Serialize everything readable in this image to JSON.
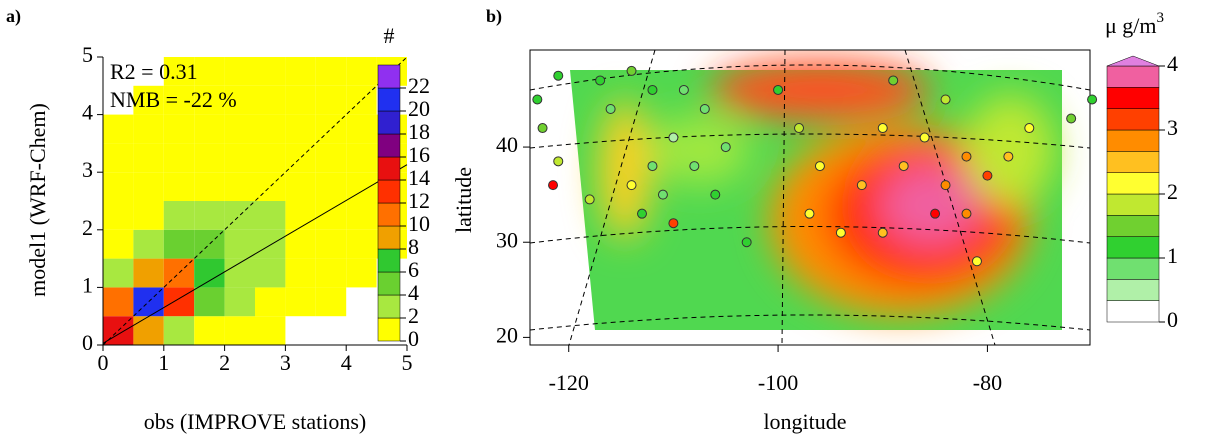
{
  "chart_data": [
    {
      "type": "heatmap",
      "panel_label": "a)",
      "xlabel": "obs (IMPROVE stations)",
      "ylabel": "model1 (WRF-Chem)",
      "annotations": [
        "R2  = 0.31",
        "NMB = -22 %"
      ],
      "annotation_color": "#ff2020",
      "xlim": [
        0,
        5
      ],
      "ylim": [
        0,
        5
      ],
      "xticks": [
        0,
        1,
        2,
        3,
        4,
        5
      ],
      "yticks": [
        0,
        1,
        2,
        3,
        4,
        5
      ],
      "xbins": [
        0,
        0.5,
        1,
        1.5,
        2,
        2.5,
        3,
        3.5,
        4,
        4.5,
        5
      ],
      "ybins": [
        0,
        0.5,
        1,
        1.5,
        2,
        2.5,
        3,
        3.5,
        4,
        4.5,
        5
      ],
      "counts": [
        [
          14,
          8,
          3,
          1,
          1,
          0,
          null,
          null,
          null,
          null
        ],
        [
          10,
          20,
          12,
          5,
          2,
          1,
          1,
          0,
          null,
          null
        ],
        [
          3,
          9,
          11,
          6,
          3,
          2,
          1,
          1,
          0,
          null
        ],
        [
          1,
          3,
          5,
          4,
          3,
          2,
          1,
          1,
          0,
          0
        ],
        [
          1,
          1,
          2,
          2,
          2,
          2,
          1,
          1,
          0,
          0
        ],
        [
          0,
          1,
          1,
          1,
          1,
          1,
          1,
          1,
          0,
          0
        ],
        [
          0,
          0,
          1,
          1,
          1,
          1,
          1,
          0,
          0,
          0
        ],
        [
          0,
          0,
          0,
          0,
          1,
          1,
          0,
          0,
          0,
          0
        ],
        [
          null,
          0,
          0,
          0,
          0,
          0,
          0,
          0,
          0,
          null
        ],
        [
          null,
          null,
          0,
          0,
          0,
          0,
          0,
          0,
          0,
          0
        ]
      ],
      "fit": {
        "slope": 0.62,
        "intercept": 0.03
      },
      "colorbar": {
        "title": "#",
        "lim": [
          0,
          24
        ],
        "ticks": [
          0,
          2,
          4,
          6,
          8,
          10,
          12,
          14,
          16,
          18,
          20,
          22
        ],
        "colors": [
          "#ffff00",
          "#a8e840",
          "#6ad030",
          "#30c830",
          "#f0a000",
          "#ff7000",
          "#ff3000",
          "#e81010",
          "#800080",
          "#3020d0",
          "#2030f0",
          "#9030f0"
        ]
      }
    },
    {
      "type": "map",
      "panel_label": "b)",
      "xlabel": "longitude",
      "ylabel": "latitude",
      "xlim": [
        -123.7,
        -70.2
      ],
      "ylim": [
        19.2,
        50.2
      ],
      "xticks": [
        -120,
        -100,
        -80
      ],
      "yticks": [
        20,
        30,
        40
      ],
      "stations": {
        "lon": [
          -123,
          -122.5,
          -121,
          -118,
          -121,
          -117,
          -116,
          -114,
          -112,
          -109,
          -107,
          -110,
          -112,
          -108,
          -105,
          -106,
          -111,
          -113,
          -110,
          -103,
          -100,
          -98,
          -96,
          -97,
          -94,
          -92,
          -90,
          -88,
          -86,
          -84,
          -82,
          -80,
          -78,
          -76,
          -72,
          -70,
          -85,
          -82,
          -81,
          -90,
          -84,
          -89,
          -114,
          -121.5
        ],
        "lat": [
          45,
          42,
          38.5,
          34.5,
          47.5,
          47,
          44,
          48,
          46,
          46,
          44,
          41,
          38,
          38,
          40,
          35,
          35,
          33,
          32,
          30,
          46,
          42,
          38,
          33,
          31,
          36,
          42,
          38,
          41,
          36,
          39,
          37,
          39,
          42,
          43,
          45,
          33,
          33,
          28,
          31,
          45,
          47,
          36,
          36
        ],
        "values": [
          1.2,
          1.5,
          1.8,
          1.9,
          1.0,
          1.3,
          0.8,
          1.6,
          1.2,
          0.9,
          0.8,
          0.6,
          0.7,
          0.7,
          0.9,
          1.0,
          0.9,
          1.2,
          3.2,
          1.1,
          1.2,
          1.7,
          2.0,
          2.1,
          2.3,
          2.4,
          2.0,
          2.6,
          2.3,
          2.7,
          2.8,
          3.0,
          2.6,
          2.2,
          1.6,
          1.3,
          3.4,
          2.9,
          2.0,
          2.5,
          1.8,
          1.6,
          2.0,
          3.6
        ]
      },
      "colorbar": {
        "title": "μ  g/m",
        "title_sup": "3",
        "lim": [
          0,
          4
        ],
        "ticks": [
          0,
          1,
          2,
          3,
          4
        ],
        "colors": [
          "#ffffff",
          "#b0f0a8",
          "#70e070",
          "#30d030",
          "#70d030",
          "#c0e830",
          "#ffff30",
          "#ffc020",
          "#ff8c00",
          "#ff4000",
          "#ff0000",
          "#f060a0"
        ],
        "over_color": "#e080e0"
      }
    }
  ]
}
